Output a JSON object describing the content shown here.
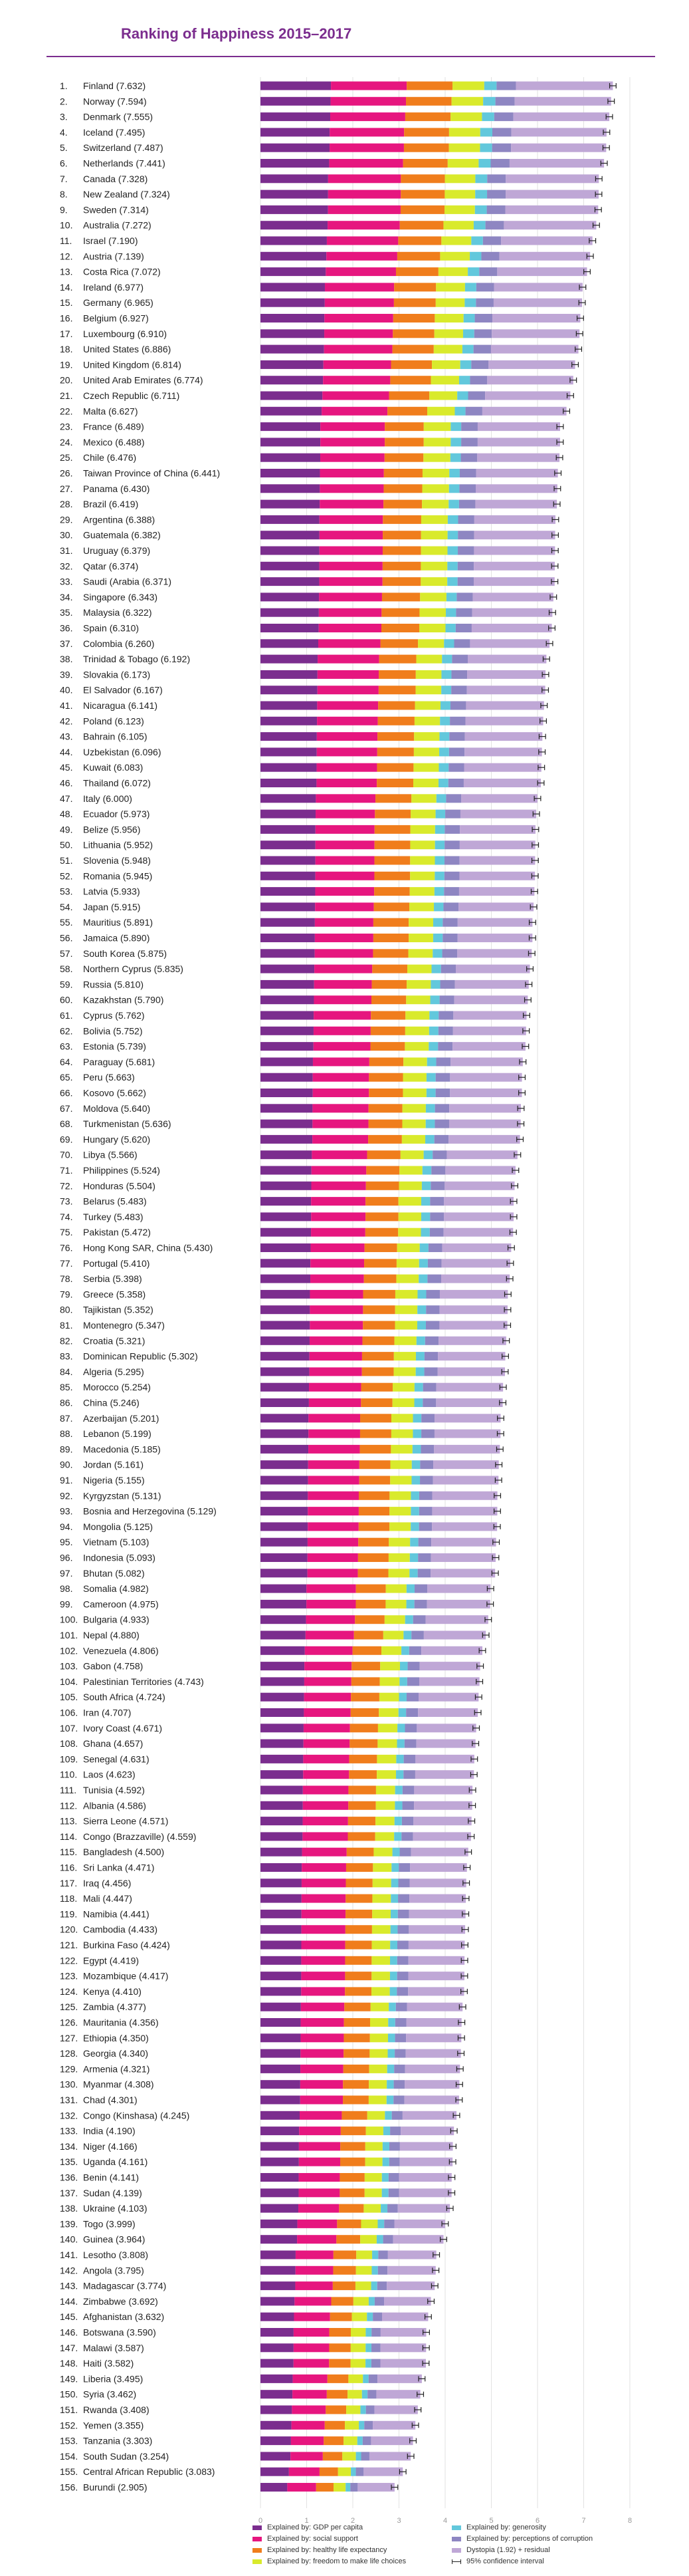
{
  "chart_data": {
    "type": "bar",
    "stacked": true,
    "orientation": "horizontal",
    "title": "Ranking of Happiness 2015–2017",
    "xlim": [
      0,
      8
    ],
    "x_ticks": [
      "0",
      "1",
      "2",
      "3",
      "4",
      "5",
      "6",
      "7",
      "8"
    ],
    "grid": true,
    "legend_position": "bottom",
    "colors": [
      "#7b2d8e",
      "#e6167f",
      "#f07d1c",
      "#d9ea2c",
      "#62c8dc",
      "#8e86c2",
      "#bfa7d6"
    ],
    "legend": [
      "Explained by: GDP per capita",
      "Explained by: social support",
      "Explained by: healthy life expectancy",
      "Explained by: freedom to make life choices",
      "Explained by: generosity",
      "Explained by: perceptions of corruption",
      "Dystopia (1.92) + residual",
      "95% confidence interval"
    ],
    "rows": [
      [
        "1.",
        "Finland (7.632)",
        7.632
      ],
      [
        "2.",
        "Norway (7.594)",
        7.594
      ],
      [
        "3.",
        "Denmark (7.555)",
        7.555
      ],
      [
        "4.",
        "Iceland (7.495)",
        7.495
      ],
      [
        "5.",
        "Switzerland (7.487)",
        7.487
      ],
      [
        "6.",
        "Netherlands (7.441)",
        7.441
      ],
      [
        "7.",
        "Canada (7.328)",
        7.328
      ],
      [
        "8.",
        "New Zealand (7.324)",
        7.324
      ],
      [
        "9.",
        "Sweden (7.314)",
        7.314
      ],
      [
        "10.",
        "Australia (7.272)",
        7.272
      ],
      [
        "11.",
        "Israel (7.190)",
        7.19
      ],
      [
        "12.",
        "Austria (7.139)",
        7.139
      ],
      [
        "13.",
        "Costa Rica (7.072)",
        7.072
      ],
      [
        "14.",
        "Ireland (6.977)",
        6.977
      ],
      [
        "15.",
        "Germany (6.965)",
        6.965
      ],
      [
        "16.",
        "Belgium (6.927)",
        6.927
      ],
      [
        "17.",
        "Luxembourg (6.910)",
        6.91
      ],
      [
        "18.",
        "United States (6.886)",
        6.886
      ],
      [
        "19.",
        "United Kingdom (6.814)",
        6.814
      ],
      [
        "20.",
        "United Arab Emirates (6.774)",
        6.774
      ],
      [
        "21.",
        "Czech Republic (6.711)",
        6.711
      ],
      [
        "22.",
        "Malta (6.627)",
        6.627
      ],
      [
        "23.",
        "France (6.489)",
        6.489
      ],
      [
        "24.",
        "Mexico (6.488)",
        6.488
      ],
      [
        "25.",
        "Chile (6.476)",
        6.476
      ],
      [
        "26.",
        "Taiwan Province of China (6.441)",
        6.441
      ],
      [
        "27.",
        "Panama (6.430)",
        6.43
      ],
      [
        "28.",
        "Brazil (6.419)",
        6.419
      ],
      [
        "29.",
        "Argentina (6.388)",
        6.388
      ],
      [
        "30.",
        "Guatemala (6.382)",
        6.382
      ],
      [
        "31.",
        "Uruguay (6.379)",
        6.379
      ],
      [
        "32.",
        "Qatar (6.374)",
        6.374
      ],
      [
        "33.",
        "Saudi (Arabia (6.371)",
        6.371
      ],
      [
        "34.",
        "Singapore (6.343)",
        6.343
      ],
      [
        "35.",
        "Malaysia (6.322)",
        6.322
      ],
      [
        "36.",
        "Spain (6.310)",
        6.31
      ],
      [
        "37.",
        "Colombia (6.260)",
        6.26
      ],
      [
        "38.",
        "Trinidad & Tobago (6.192)",
        6.192
      ],
      [
        "39.",
        "Slovakia (6.173)",
        6.173
      ],
      [
        "40.",
        "El Salvador (6.167)",
        6.167
      ],
      [
        "41.",
        "Nicaragua (6.141)",
        6.141
      ],
      [
        "42.",
        "Poland (6.123)",
        6.123
      ],
      [
        "43.",
        "Bahrain (6.105)",
        6.105
      ],
      [
        "44.",
        "Uzbekistan (6.096)",
        6.096
      ],
      [
        "45.",
        "Kuwait (6.083)",
        6.083
      ],
      [
        "46.",
        "Thailand (6.072)",
        6.072
      ],
      [
        "47.",
        "Italy (6.000)",
        6.0
      ],
      [
        "48.",
        "Ecuador (5.973)",
        5.973
      ],
      [
        "49.",
        "Belize (5.956)",
        5.956
      ],
      [
        "50.",
        "Lithuania (5.952)",
        5.952
      ],
      [
        "51.",
        "Slovenia (5.948)",
        5.948
      ],
      [
        "52.",
        "Romania (5.945)",
        5.945
      ],
      [
        "53.",
        "Latvia (5.933)",
        5.933
      ],
      [
        "54.",
        "Japan (5.915)",
        5.915
      ],
      [
        "55.",
        "Mauritius (5.891)",
        5.891
      ],
      [
        "56.",
        "Jamaica (5.890)",
        5.89
      ],
      [
        "57.",
        "South Korea (5.875)",
        5.875
      ],
      [
        "58.",
        "Northern Cyprus (5.835)",
        5.835
      ],
      [
        "59.",
        "Russia (5.810)",
        5.81
      ],
      [
        "60.",
        "Kazakhstan (5.790)",
        5.79
      ],
      [
        "61.",
        "Cyprus (5.762)",
        5.762
      ],
      [
        "62.",
        "Bolivia (5.752)",
        5.752
      ],
      [
        "63.",
        "Estonia (5.739)",
        5.739
      ],
      [
        "64.",
        "Paraguay (5.681)",
        5.681
      ],
      [
        "65.",
        "Peru (5.663)",
        5.663
      ],
      [
        "66.",
        "Kosovo (5.662)",
        5.662
      ],
      [
        "67.",
        "Moldova (5.640)",
        5.64
      ],
      [
        "68.",
        "Turkmenistan (5.636)",
        5.636
      ],
      [
        "69.",
        "Hungary (5.620)",
        5.62
      ],
      [
        "70.",
        "Libya (5.566)",
        5.566
      ],
      [
        "71.",
        "Philippines (5.524)",
        5.524
      ],
      [
        "72.",
        "Honduras (5.504)",
        5.504
      ],
      [
        "73.",
        "Belarus (5.483)",
        5.483
      ],
      [
        "74.",
        "Turkey (5.483)",
        5.483
      ],
      [
        "75.",
        "Pakistan (5.472)",
        5.472
      ],
      [
        "76.",
        "Hong Kong SAR, China (5.430)",
        5.43
      ],
      [
        "77.",
        "Portugal (5.410)",
        5.41
      ],
      [
        "78.",
        "Serbia (5.398)",
        5.398
      ],
      [
        "79.",
        "Greece (5.358)",
        5.358
      ],
      [
        "80.",
        "Tajikistan (5.352)",
        5.352
      ],
      [
        "81.",
        "Montenegro (5.347)",
        5.347
      ],
      [
        "82.",
        "Croatia (5.321)",
        5.321
      ],
      [
        "83.",
        "Dominican Republic (5.302)",
        5.302
      ],
      [
        "84.",
        "Algeria (5.295)",
        5.295
      ],
      [
        "85.",
        "Morocco (5.254)",
        5.254
      ],
      [
        "86.",
        "China (5.246)",
        5.246
      ],
      [
        "87.",
        "Azerbaijan (5.201)",
        5.201
      ],
      [
        "88.",
        "Lebanon (5.199)",
        5.199
      ],
      [
        "89.",
        "Macedonia (5.185)",
        5.185
      ],
      [
        "90.",
        "Jordan (5.161)",
        5.161
      ],
      [
        "91.",
        "Nigeria (5.155)",
        5.155
      ],
      [
        "92.",
        "Kyrgyzstan (5.131)",
        5.131
      ],
      [
        "93.",
        "Bosnia and Herzegovina (5.129)",
        5.129
      ],
      [
        "94.",
        "Mongolia (5.125)",
        5.125
      ],
      [
        "95.",
        "Vietnam (5.103)",
        5.103
      ],
      [
        "96.",
        "Indonesia (5.093)",
        5.093
      ],
      [
        "97.",
        "Bhutan (5.082)",
        5.082
      ],
      [
        "98.",
        "Somalia (4.982)",
        4.982
      ],
      [
        "99.",
        "Cameroon (4.975)",
        4.975
      ],
      [
        "100.",
        "Bulgaria (4.933)",
        4.933
      ],
      [
        "101.",
        "Nepal (4.880)",
        4.88
      ],
      [
        "102.",
        "Venezuela (4.806)",
        4.806
      ],
      [
        "103.",
        "Gabon (4.758)",
        4.758
      ],
      [
        "104.",
        "Palestinian Territories (4.743)",
        4.743
      ],
      [
        "105.",
        "South Africa (4.724)",
        4.724
      ],
      [
        "106.",
        "Iran (4.707)",
        4.707
      ],
      [
        "107.",
        "Ivory Coast (4.671)",
        4.671
      ],
      [
        "108.",
        "Ghana (4.657)",
        4.657
      ],
      [
        "109.",
        "Senegal (4.631)",
        4.631
      ],
      [
        "110.",
        "Laos (4.623)",
        4.623
      ],
      [
        "111.",
        "Tunisia (4.592)",
        4.592
      ],
      [
        "112.",
        "Albania (4.586)",
        4.586
      ],
      [
        "113.",
        "Sierra Leone (4.571)",
        4.571
      ],
      [
        "114.",
        "Congo (Brazzaville) (4.559)",
        4.559
      ],
      [
        "115.",
        "Bangladesh (4.500)",
        4.5
      ],
      [
        "116.",
        "Sri Lanka (4.471)",
        4.471
      ],
      [
        "117.",
        "Iraq (4.456)",
        4.456
      ],
      [
        "118.",
        "Mali (4.447)",
        4.447
      ],
      [
        "119.",
        "Namibia (4.441)",
        4.441
      ],
      [
        "120.",
        "Cambodia (4.433)",
        4.433
      ],
      [
        "121.",
        "Burkina Faso (4.424)",
        4.424
      ],
      [
        "122.",
        "Egypt (4.419)",
        4.419
      ],
      [
        "123.",
        "Mozambique (4.417)",
        4.417
      ],
      [
        "124.",
        "Kenya (4.410)",
        4.41
      ],
      [
        "125.",
        "Zambia (4.377)",
        4.377
      ],
      [
        "126.",
        "Mauritania (4.356)",
        4.356
      ],
      [
        "127.",
        "Ethiopia (4.350)",
        4.35
      ],
      [
        "128.",
        "Georgia (4.340)",
        4.34
      ],
      [
        "129.",
        "Armenia (4.321)",
        4.321
      ],
      [
        "130.",
        "Myanmar (4.308)",
        4.308
      ],
      [
        "131.",
        "Chad (4.301)",
        4.301
      ],
      [
        "132.",
        "Congo (Kinshasa) (4.245)",
        4.245
      ],
      [
        "133.",
        "India (4.190)",
        4.19
      ],
      [
        "134.",
        "Niger (4.166)",
        4.166
      ],
      [
        "135.",
        "Uganda (4.161)",
        4.161
      ],
      [
        "136.",
        "Benin (4.141)",
        4.141
      ],
      [
        "137.",
        "Sudan (4.139)",
        4.139
      ],
      [
        "138.",
        "Ukraine (4.103)",
        4.103
      ],
      [
        "139.",
        "Togo (3.999)",
        3.999
      ],
      [
        "140.",
        "Guinea (3.964)",
        3.964
      ],
      [
        "141.",
        "Lesotho (3.808)",
        3.808
      ],
      [
        "142.",
        "Angola (3.795)",
        3.795
      ],
      [
        "143.",
        "Madagascar (3.774)",
        3.774
      ],
      [
        "144.",
        "Zimbabwe (3.692)",
        3.692
      ],
      [
        "145.",
        "Afghanistan (3.632)",
        3.632
      ],
      [
        "146.",
        "Botswana (3.590)",
        3.59
      ],
      [
        "147.",
        "Malawi (3.587)",
        3.587
      ],
      [
        "148.",
        "Haiti (3.582)",
        3.582
      ],
      [
        "149.",
        "Liberia (3.495)",
        3.495
      ],
      [
        "150.",
        "Syria (3.462)",
        3.462
      ],
      [
        "151.",
        "Rwanda (3.408)",
        3.408
      ],
      [
        "152.",
        "Yemen (3.355)",
        3.355
      ],
      [
        "153.",
        "Tanzania (3.303)",
        3.303
      ],
      [
        "154.",
        "South Sudan (3.254)",
        3.254
      ],
      [
        "155.",
        "Central African Republic (3.083)",
        3.083
      ],
      [
        "156.",
        "Burundi (2.905)",
        2.905
      ]
    ]
  }
}
